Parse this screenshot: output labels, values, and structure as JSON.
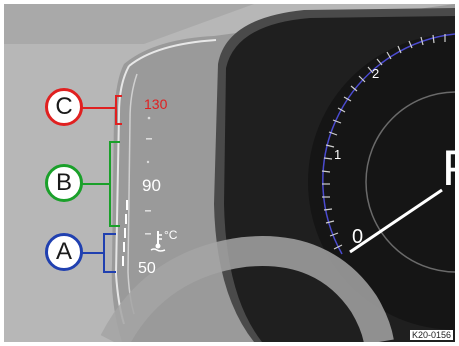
{
  "callouts": [
    {
      "letter": "C",
      "color": "#e02020"
    },
    {
      "letter": "B",
      "color": "#1aa02a"
    },
    {
      "letter": "A",
      "color": "#2040b0"
    }
  ],
  "temperature_gauge": {
    "top_value": "130",
    "mid_value": "90",
    "low_value": "50",
    "unit_symbol": "°C",
    "top_value_color": "#e02020",
    "icon": "coolant-temperature-icon"
  },
  "rpm_dial": {
    "labels": [
      "0",
      "1",
      "2"
    ],
    "gear_indicator": "P"
  },
  "figure_code": "K20-0156"
}
